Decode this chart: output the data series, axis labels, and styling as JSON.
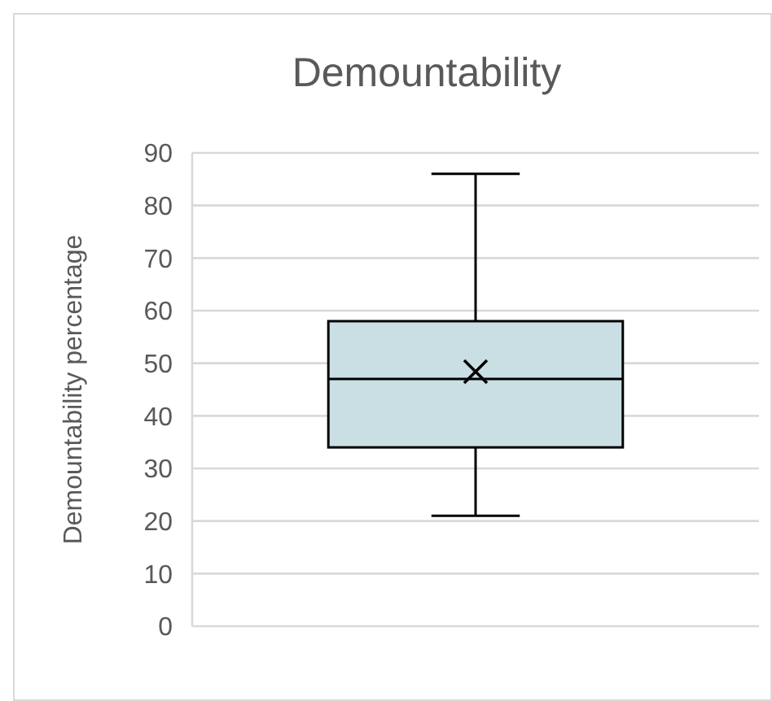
{
  "chart_data": {
    "type": "box",
    "title": "Demountability",
    "ylabel": "Demountability percentage",
    "categories": [
      null
    ],
    "boxes": [
      {
        "low": 21,
        "q1": 34,
        "median": 47,
        "q3": 58,
        "high": 86,
        "mean": 48.4
      }
    ],
    "color": "#c9dfe4",
    "ylim": [
      0,
      90
    ],
    "yticks": [
      0,
      10,
      20,
      30,
      40,
      50,
      60,
      70,
      80,
      90
    ],
    "grid": "y",
    "marker": "cross"
  }
}
